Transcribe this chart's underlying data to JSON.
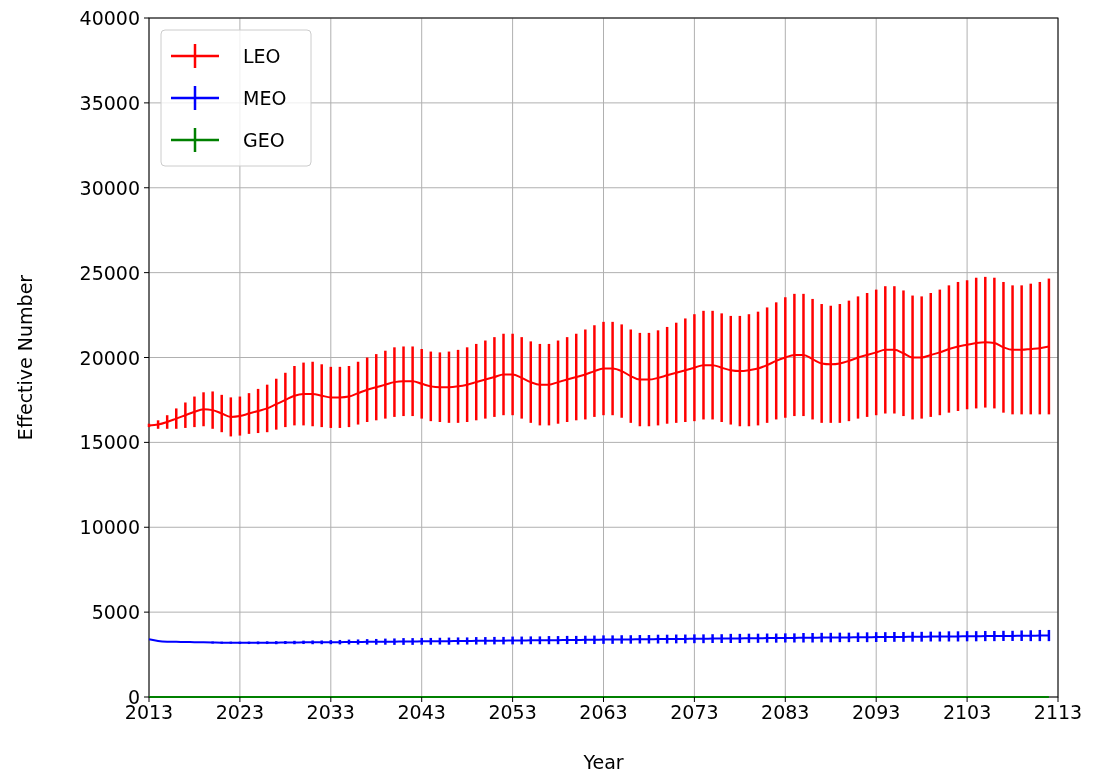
{
  "chart_data": {
    "type": "line",
    "xlabel": "Year",
    "ylabel": "Effective Number",
    "x": [
      2013,
      2014,
      2015,
      2016,
      2017,
      2018,
      2019,
      2020,
      2021,
      2022,
      2023,
      2024,
      2025,
      2026,
      2027,
      2028,
      2029,
      2030,
      2031,
      2032,
      2033,
      2034,
      2035,
      2036,
      2037,
      2038,
      2039,
      2040,
      2041,
      2042,
      2043,
      2044,
      2045,
      2046,
      2047,
      2048,
      2049,
      2050,
      2051,
      2052,
      2053,
      2054,
      2055,
      2056,
      2057,
      2058,
      2059,
      2060,
      2061,
      2062,
      2063,
      2064,
      2065,
      2066,
      2067,
      2068,
      2069,
      2070,
      2071,
      2072,
      2073,
      2074,
      2075,
      2076,
      2077,
      2078,
      2079,
      2080,
      2081,
      2082,
      2083,
      2084,
      2085,
      2086,
      2087,
      2088,
      2089,
      2090,
      2091,
      2092,
      2093,
      2094,
      2095,
      2096,
      2097,
      2098,
      2099,
      2100,
      2101,
      2102,
      2103,
      2104,
      2105,
      2106,
      2107,
      2108,
      2109,
      2110,
      2111,
      2112
    ],
    "series": [
      {
        "name": "LEO",
        "color": "#ff0000",
        "values": [
          16000,
          16050,
          16200,
          16400,
          16600,
          16800,
          16950,
          16900,
          16700,
          16500,
          16550,
          16700,
          16850,
          17000,
          17250,
          17500,
          17750,
          17850,
          17850,
          17750,
          17650,
          17650,
          17700,
          17900,
          18100,
          18250,
          18400,
          18550,
          18600,
          18600,
          18450,
          18300,
          18250,
          18250,
          18300,
          18400,
          18550,
          18700,
          18850,
          19000,
          19000,
          18800,
          18550,
          18400,
          18400,
          18550,
          18700,
          18850,
          19000,
          19200,
          19350,
          19350,
          19200,
          18900,
          18700,
          18700,
          18800,
          18950,
          19100,
          19250,
          19400,
          19550,
          19550,
          19400,
          19250,
          19200,
          19250,
          19350,
          19550,
          19800,
          20000,
          20150,
          20150,
          19900,
          19650,
          19600,
          19650,
          19800,
          20000,
          20150,
          20300,
          20450,
          20450,
          20250,
          20000,
          20000,
          20150,
          20300,
          20500,
          20650,
          20750,
          20850,
          20900,
          20850,
          20600,
          20450,
          20450,
          20500,
          20550,
          20650
        ],
        "errors": [
          100,
          250,
          400,
          600,
          750,
          900,
          1000,
          1100,
          1100,
          1150,
          1150,
          1200,
          1300,
          1400,
          1500,
          1600,
          1750,
          1850,
          1900,
          1850,
          1800,
          1800,
          1800,
          1850,
          1900,
          1950,
          2000,
          2050,
          2050,
          2050,
          2050,
          2050,
          2050,
          2100,
          2150,
          2200,
          2250,
          2300,
          2350,
          2400,
          2400,
          2400,
          2400,
          2400,
          2400,
          2450,
          2500,
          2550,
          2650,
          2700,
          2750,
          2750,
          2750,
          2750,
          2750,
          2750,
          2800,
          2850,
          2950,
          3050,
          3150,
          3200,
          3200,
          3200,
          3200,
          3250,
          3300,
          3350,
          3400,
          3450,
          3550,
          3600,
          3600,
          3550,
          3500,
          3450,
          3500,
          3550,
          3600,
          3650,
          3700,
          3750,
          3750,
          3700,
          3650,
          3600,
          3650,
          3700,
          3750,
          3800,
          3800,
          3850,
          3850,
          3850,
          3850,
          3800,
          3800,
          3850,
          3900,
          4000
        ]
      },
      {
        "name": "MEO",
        "color": "#0000ff",
        "values": [
          3400,
          3300,
          3260,
          3250,
          3240,
          3230,
          3220,
          3210,
          3200,
          3200,
          3190,
          3190,
          3190,
          3200,
          3200,
          3210,
          3210,
          3220,
          3220,
          3220,
          3230,
          3230,
          3240,
          3240,
          3250,
          3250,
          3260,
          3260,
          3270,
          3270,
          3280,
          3280,
          3290,
          3290,
          3300,
          3300,
          3310,
          3310,
          3320,
          3320,
          3330,
          3330,
          3340,
          3340,
          3350,
          3350,
          3360,
          3360,
          3370,
          3370,
          3380,
          3380,
          3390,
          3390,
          3400,
          3400,
          3410,
          3410,
          3420,
          3420,
          3430,
          3430,
          3440,
          3440,
          3450,
          3450,
          3460,
          3460,
          3470,
          3470,
          3480,
          3480,
          3490,
          3490,
          3500,
          3500,
          3510,
          3510,
          3520,
          3520,
          3530,
          3530,
          3540,
          3540,
          3550,
          3550,
          3560,
          3560,
          3570,
          3570,
          3580,
          3580,
          3590,
          3590,
          3600,
          3600,
          3610,
          3610,
          3620,
          3620
        ],
        "errors": [
          null,
          null,
          null,
          null,
          null,
          null,
          null,
          60,
          60,
          60,
          70,
          70,
          80,
          80,
          90,
          90,
          100,
          100,
          110,
          110,
          120,
          130,
          140,
          150,
          160,
          170,
          180,
          190,
          200,
          200,
          200,
          200,
          200,
          210,
          210,
          210,
          220,
          220,
          220,
          220,
          230,
          230,
          230,
          230,
          240,
          240,
          240,
          240,
          240,
          250,
          250,
          250,
          250,
          250,
          250,
          250,
          260,
          260,
          260,
          260,
          260,
          260,
          260,
          260,
          270,
          270,
          270,
          270,
          270,
          270,
          270,
          270,
          280,
          280,
          280,
          280,
          280,
          280,
          280,
          290,
          290,
          290,
          290,
          290,
          290,
          290,
          290,
          290,
          300,
          300,
          300,
          300,
          300,
          300,
          300,
          300,
          310,
          320,
          330,
          330
        ]
      },
      {
        "name": "GEO",
        "color": "#008000",
        "values": [
          0,
          0,
          0,
          0,
          0,
          0,
          0,
          0,
          0,
          0,
          0,
          0,
          0,
          0,
          0,
          0,
          0,
          0,
          0,
          0,
          0,
          0,
          0,
          0,
          0,
          0,
          0,
          0,
          0,
          0,
          0,
          0,
          0,
          0,
          0,
          0,
          0,
          0,
          0,
          0,
          0,
          0,
          0,
          0,
          0,
          0,
          0,
          0,
          0,
          0,
          0,
          0,
          0,
          0,
          0,
          0,
          0,
          0,
          0,
          0,
          0,
          0,
          0,
          0,
          0,
          0,
          0,
          0,
          0,
          0,
          0,
          0,
          0,
          0,
          0,
          0,
          0,
          0,
          0,
          0,
          0,
          0,
          0,
          0,
          0,
          0,
          0,
          0,
          0,
          0,
          0,
          0,
          0,
          0,
          0,
          0,
          0,
          0,
          0,
          0
        ]
      }
    ],
    "xlim": [
      2013,
      2113
    ],
    "xticks": [
      2013,
      2023,
      2033,
      2043,
      2053,
      2063,
      2073,
      2083,
      2093,
      2103,
      2113
    ],
    "ylim": [
      0,
      40000
    ],
    "yticks": [
      0,
      5000,
      10000,
      15000,
      20000,
      25000,
      30000,
      35000,
      40000
    ],
    "grid": true,
    "legend": "top left",
    "marker": "none",
    "line_style": "solid"
  }
}
